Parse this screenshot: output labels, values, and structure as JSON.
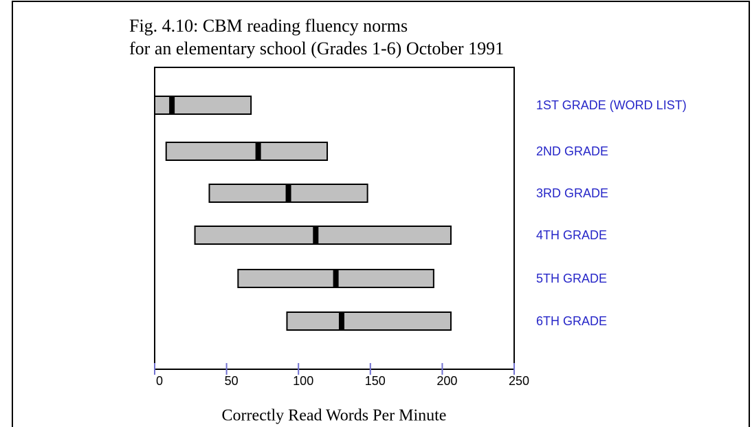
{
  "chart_data": {
    "type": "range_bar",
    "title": [
      "Fig. 4.10:  CBM reading fluency norms",
      "for an elementary school (Grades 1-6)   October 1991"
    ],
    "xlabel": "Correctly Read Words Per Minute",
    "categories": [
      "1ST GRADE (WORD LIST)",
      "2ND GRADE",
      "3RD GRADE",
      "4TH GRADE",
      "5TH GRADE",
      "6TH GRADE"
    ],
    "low": [
      0,
      8,
      38,
      28,
      58,
      92
    ],
    "high": [
      67,
      120,
      148,
      206,
      194,
      206
    ],
    "median": [
      12,
      72,
      93,
      112,
      126,
      130
    ],
    "bar_color": "#c0c0c0",
    "median_color": "#000000",
    "label_color": "#2626c8",
    "xlim": [
      0,
      250
    ],
    "xticks": [
      0,
      50,
      100,
      150,
      200,
      250
    ]
  }
}
